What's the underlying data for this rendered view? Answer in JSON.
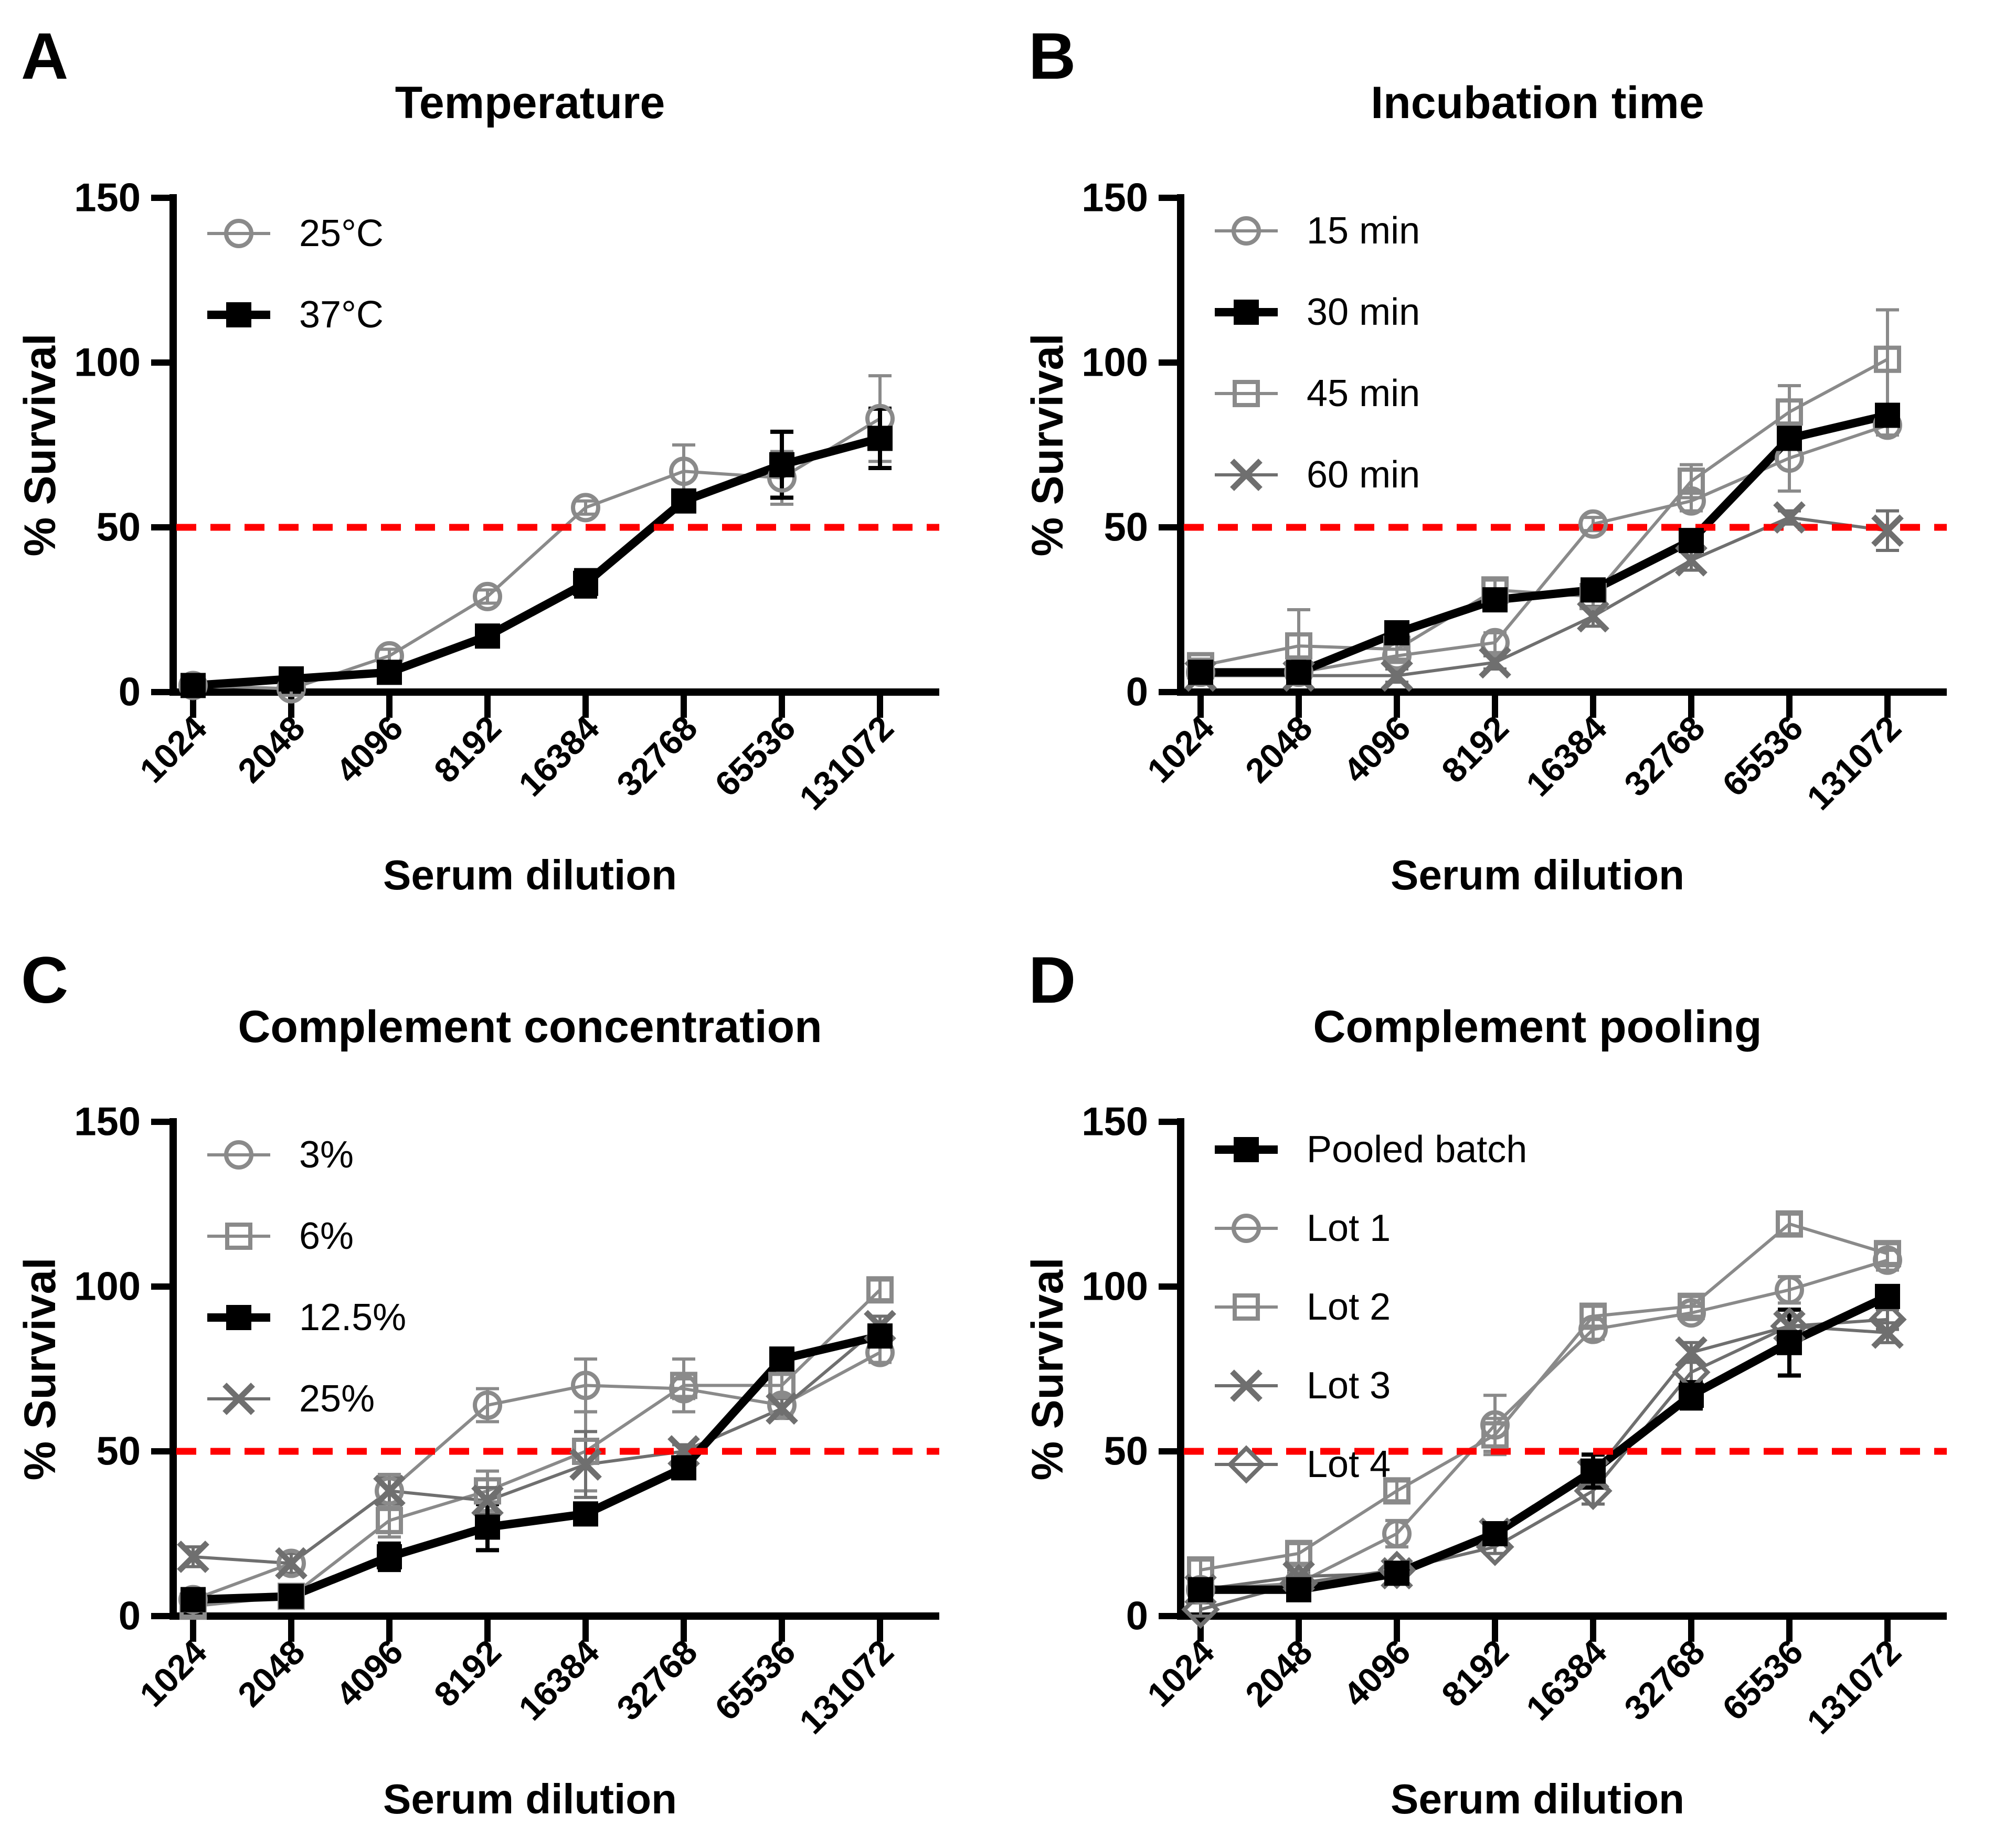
{
  "figure": {
    "background": "#ffffff",
    "text_color": "#000000",
    "threshold_color": "#ff0000",
    "series_gray": "#8a8a8a",
    "series_dark_gray": "#6f6f6f",
    "series_black": "#000000"
  },
  "chart_data": [
    {
      "panel_label": "A",
      "title": "Temperature",
      "type": "line",
      "xlabel": "Serum dilution",
      "ylabel": "% Survival",
      "categories": [
        "1024",
        "2048",
        "4096",
        "8192",
        "16384",
        "32768",
        "65536",
        "131072"
      ],
      "ylim": [
        0,
        150
      ],
      "yticks": [
        0,
        50,
        100,
        150
      ],
      "threshold": 50,
      "legend_position": "top-left",
      "grid": false,
      "series": [
        {
          "name": "25°C",
          "marker": "open-circle",
          "color": "#8a8a8a",
          "emphasis": false,
          "values": [
            2,
            1,
            11,
            29,
            56,
            67,
            65,
            83
          ],
          "errors": [
            0,
            2,
            2,
            2,
            2,
            8,
            8,
            13
          ]
        },
        {
          "name": "37°C",
          "marker": "filled-square",
          "color": "#000000",
          "emphasis": true,
          "values": [
            2,
            4,
            6,
            17,
            33,
            58,
            69,
            77
          ],
          "errors": [
            2,
            0,
            0,
            0,
            4,
            0,
            10,
            9
          ]
        }
      ]
    },
    {
      "panel_label": "B",
      "title": "Incubation time",
      "type": "line",
      "xlabel": "Serum dilution",
      "ylabel": "% Survival",
      "categories": [
        "1024",
        "2048",
        "4096",
        "8192",
        "16384",
        "32768",
        "65536",
        "131072"
      ],
      "ylim": [
        0,
        150
      ],
      "yticks": [
        0,
        50,
        100,
        150
      ],
      "threshold": 50,
      "legend_position": "top-left",
      "grid": false,
      "series": [
        {
          "name": "15 min",
          "marker": "open-circle",
          "color": "#8a8a8a",
          "emphasis": false,
          "values": [
            6,
            6,
            11,
            15,
            51,
            58,
            71,
            81
          ],
          "errors": [
            2,
            2,
            2,
            3,
            2,
            3,
            10,
            3
          ]
        },
        {
          "name": "30 min",
          "marker": "filled-square",
          "color": "#000000",
          "emphasis": true,
          "values": [
            6,
            6,
            18,
            28,
            31,
            46,
            77,
            84
          ],
          "errors": [
            2,
            2,
            3,
            3,
            3,
            2,
            3,
            3
          ]
        },
        {
          "name": "45 min",
          "marker": "open-square",
          "color": "#8a8a8a",
          "emphasis": false,
          "values": [
            8,
            14,
            13,
            31,
            29,
            64,
            85,
            101
          ],
          "errors": [
            2,
            11,
            3,
            3,
            3,
            5,
            8,
            15
          ]
        },
        {
          "name": "60 min",
          "marker": "x",
          "color": "#6f6f6f",
          "emphasis": false,
          "values": [
            5,
            5,
            5,
            9,
            23,
            40,
            53,
            49
          ],
          "errors": [
            2,
            2,
            2,
            2,
            3,
            3,
            2,
            6
          ]
        }
      ]
    },
    {
      "panel_label": "C",
      "title": "Complement concentration",
      "type": "line",
      "xlabel": "Serum dilution",
      "ylabel": "% Survival",
      "categories": [
        "1024",
        "2048",
        "4096",
        "8192",
        "16384",
        "32768",
        "65536",
        "131072"
      ],
      "ylim": [
        0,
        150
      ],
      "yticks": [
        0,
        50,
        100,
        150
      ],
      "threshold": 50,
      "legend_position": "top-left",
      "grid": false,
      "series": [
        {
          "name": "3%",
          "marker": "open-circle",
          "color": "#8a8a8a",
          "emphasis": false,
          "values": [
            5,
            16,
            38,
            64,
            70,
            69,
            64,
            80
          ],
          "errors": [
            2,
            3,
            5,
            5,
            8,
            3,
            3,
            3
          ]
        },
        {
          "name": "6%",
          "marker": "open-square",
          "color": "#8a8a8a",
          "emphasis": false,
          "values": [
            3,
            6,
            29,
            38,
            50,
            70,
            70,
            99
          ],
          "errors": [
            3,
            2,
            5,
            6,
            12,
            8,
            4,
            3
          ]
        },
        {
          "name": "12.5%",
          "marker": "filled-square",
          "color": "#000000",
          "emphasis": true,
          "values": [
            5,
            6,
            18,
            27,
            31,
            45,
            78,
            85
          ],
          "errors": [
            2,
            2,
            4,
            7,
            3,
            2,
            3,
            3
          ]
        },
        {
          "name": "25%",
          "marker": "x",
          "color": "#6f6f6f",
          "emphasis": false,
          "values": [
            18,
            16,
            38,
            35,
            46,
            50,
            63,
            88
          ],
          "errors": [
            3,
            3,
            4,
            4,
            10,
            2,
            3,
            3
          ]
        }
      ]
    },
    {
      "panel_label": "D",
      "title": "Complement pooling",
      "type": "line",
      "xlabel": "Serum dilution",
      "ylabel": "% Survival",
      "categories": [
        "1024",
        "2048",
        "4096",
        "8192",
        "16384",
        "32768",
        "65536",
        "131072"
      ],
      "ylim": [
        0,
        150
      ],
      "yticks": [
        0,
        50,
        100,
        150
      ],
      "threshold": 50,
      "legend_position": "top-left",
      "grid": false,
      "series": [
        {
          "name": "Pooled batch",
          "marker": "filled-square",
          "color": "#000000",
          "emphasis": true,
          "values": [
            8,
            8,
            13,
            25,
            44,
            67,
            83,
            97
          ],
          "errors": [
            2,
            3,
            2,
            3,
            5,
            4,
            10,
            3
          ]
        },
        {
          "name": "Lot 1",
          "marker": "open-circle",
          "color": "#8a8a8a",
          "emphasis": false,
          "values": [
            8,
            10,
            25,
            58,
            87,
            92,
            99,
            108
          ],
          "errors": [
            2,
            2,
            4,
            9,
            3,
            2,
            4,
            3
          ]
        },
        {
          "name": "Lot 2",
          "marker": "open-square",
          "color": "#8a8a8a",
          "emphasis": false,
          "values": [
            14,
            19,
            38,
            55,
            91,
            94,
            119,
            110
          ],
          "errors": [
            3,
            3,
            3,
            5,
            3,
            3,
            3,
            3
          ]
        },
        {
          "name": "Lot 3",
          "marker": "x",
          "color": "#6f6f6f",
          "emphasis": false,
          "values": [
            8,
            12,
            13,
            25,
            43,
            80,
            88,
            86
          ],
          "errors": [
            2,
            2,
            2,
            3,
            3,
            3,
            3,
            3
          ]
        },
        {
          "name": "Lot 4",
          "marker": "open-diamond",
          "color": "#6f6f6f",
          "emphasis": false,
          "values": [
            2,
            10,
            14,
            21,
            38,
            74,
            88,
            90
          ],
          "errors": [
            2,
            3,
            2,
            2,
            4,
            3,
            3,
            3
          ]
        }
      ]
    }
  ]
}
